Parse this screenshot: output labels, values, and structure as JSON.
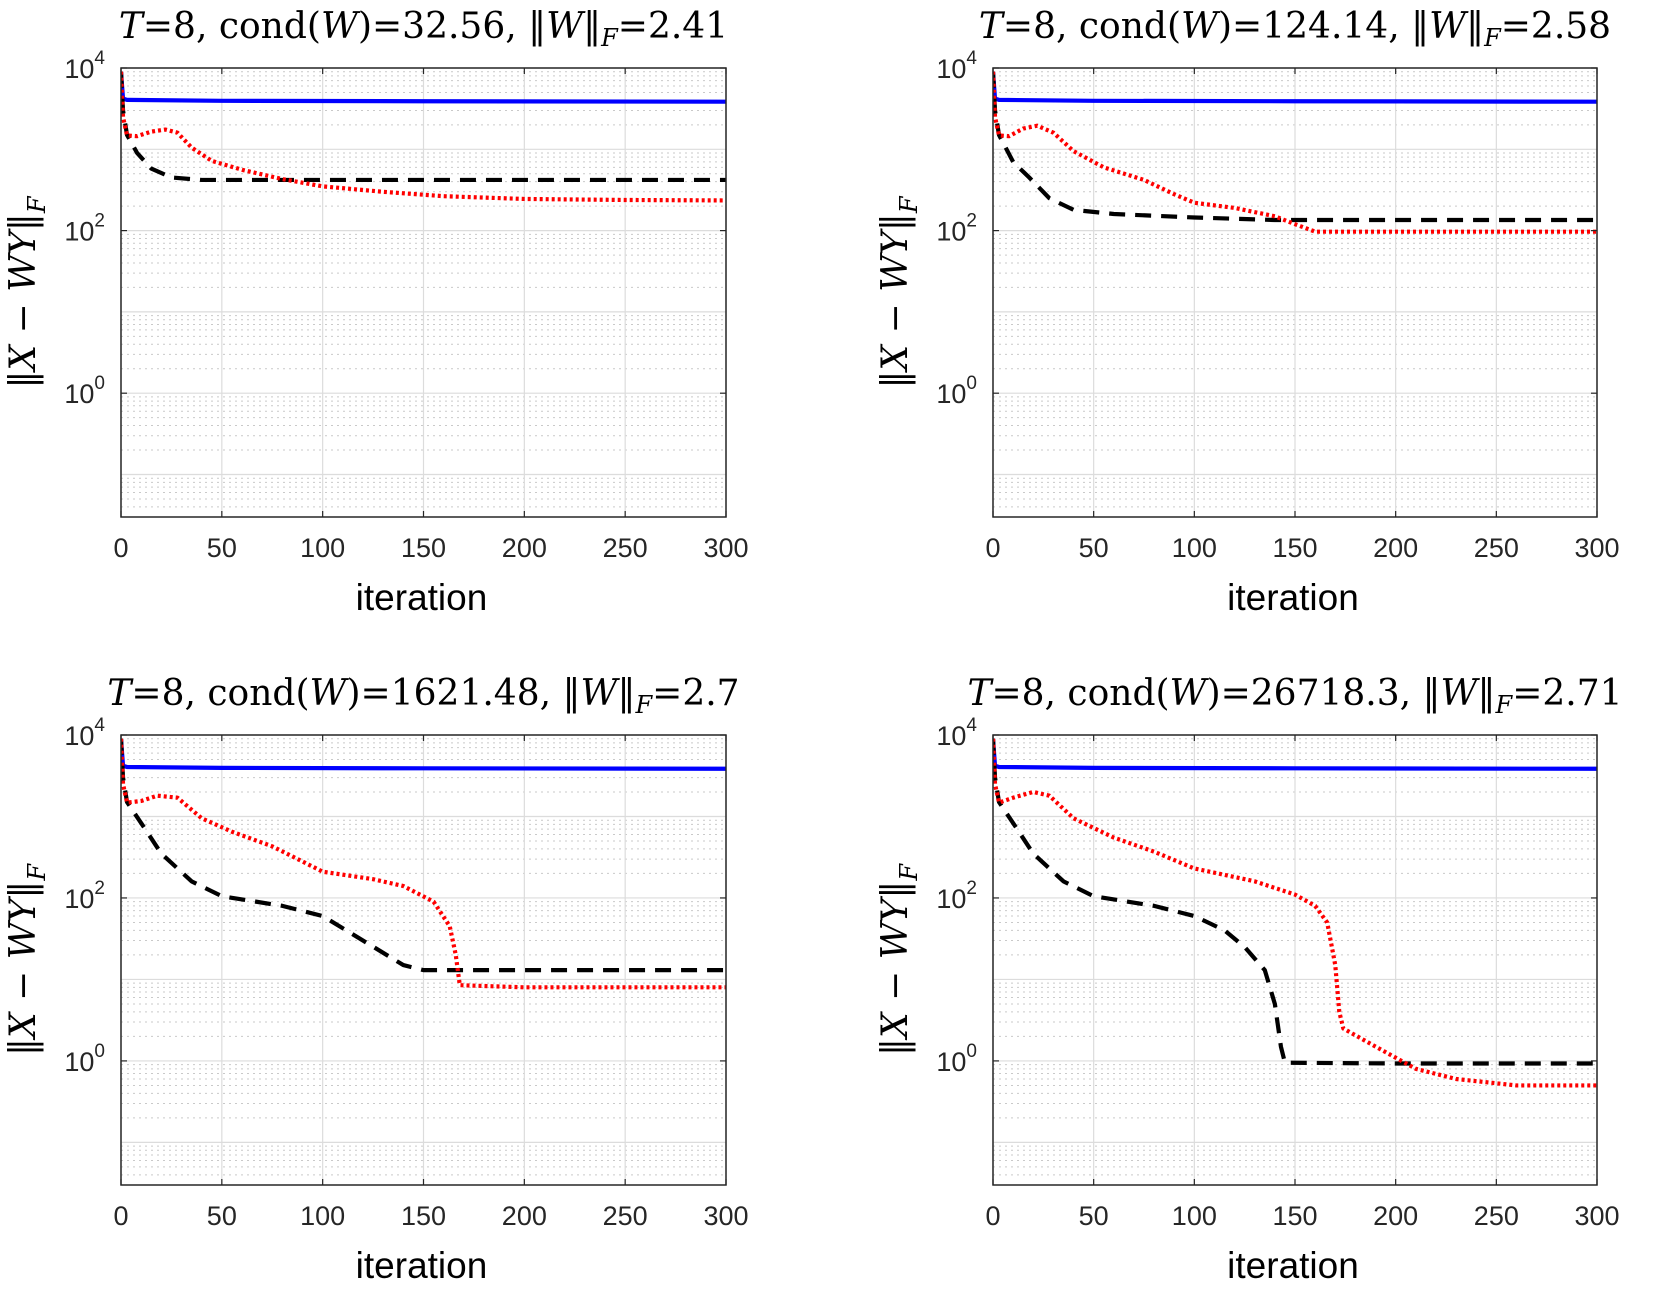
{
  "chart_data": [
    {
      "type": "line",
      "title": "T=8, cond(W)=32.56, ‖W‖F=2.41",
      "title_parts": {
        "t": "T",
        "t_val": "=8, cond(",
        "w": "W",
        "cond_val": ")=32.56, ‖",
        "w2": "W",
        "norm_close": "‖",
        "sub": "F",
        "norm_val": "=2.41"
      },
      "xlabel": "iteration",
      "ylabel": "‖X − WY‖F",
      "xlim": [
        0,
        300
      ],
      "ylim": [
        0.03,
        10000
      ],
      "xticks": [
        "0",
        "50",
        "100",
        "150",
        "200",
        "250",
        "300"
      ],
      "yticks": [
        {
          "base": "10",
          "exp": "0"
        },
        {
          "base": "10",
          "exp": "2"
        },
        {
          "base": "10",
          "exp": "4"
        }
      ],
      "series": [
        {
          "name": "blue-solid",
          "color": "#0000ff",
          "style": "solid",
          "points": [
            [
              0,
              9000
            ],
            [
              1,
              4200
            ],
            [
              3,
              4050
            ],
            [
              50,
              3950
            ],
            [
              150,
              3900
            ],
            [
              300,
              3850
            ]
          ]
        },
        {
          "name": "black-dashed",
          "color": "#000000",
          "style": "dashed",
          "points": [
            [
              0,
              9000
            ],
            [
              1,
              3000
            ],
            [
              3,
              1500
            ],
            [
              8,
              900
            ],
            [
              15,
              580
            ],
            [
              25,
              450
            ],
            [
              40,
              420
            ],
            [
              100,
              420
            ],
            [
              200,
              420
            ],
            [
              300,
              420
            ]
          ]
        },
        {
          "name": "red-dotted",
          "color": "#ff0000",
          "style": "dotted",
          "points": [
            [
              0,
              9000
            ],
            [
              1,
              2500
            ],
            [
              3,
              1480
            ],
            [
              8,
              1450
            ],
            [
              15,
              1650
            ],
            [
              22,
              1750
            ],
            [
              28,
              1600
            ],
            [
              35,
              1050
            ],
            [
              45,
              720
            ],
            [
              60,
              560
            ],
            [
              80,
              430
            ],
            [
              100,
              350
            ],
            [
              130,
              300
            ],
            [
              160,
              265
            ],
            [
              200,
              245
            ],
            [
              250,
              238
            ],
            [
              300,
              235
            ]
          ]
        }
      ]
    },
    {
      "type": "line",
      "title": "T=8, cond(W)=124.14, ‖W‖F=2.58",
      "title_parts": {
        "t": "T",
        "t_val": "=8, cond(",
        "w": "W",
        "cond_val": ")=124.14, ‖",
        "w2": "W",
        "norm_close": "‖",
        "sub": "F",
        "norm_val": "=2.58"
      },
      "xlabel": "iteration",
      "ylabel": "‖X − WY‖F",
      "xlim": [
        0,
        300
      ],
      "ylim": [
        0.03,
        10000
      ],
      "xticks": [
        "0",
        "50",
        "100",
        "150",
        "200",
        "250",
        "300"
      ],
      "yticks": [
        {
          "base": "10",
          "exp": "0"
        },
        {
          "base": "10",
          "exp": "2"
        },
        {
          "base": "10",
          "exp": "4"
        }
      ],
      "series": [
        {
          "name": "blue-solid",
          "color": "#0000ff",
          "style": "solid",
          "points": [
            [
              0,
              9000
            ],
            [
              1,
              4200
            ],
            [
              3,
              4050
            ],
            [
              50,
              3950
            ],
            [
              150,
              3900
            ],
            [
              300,
              3850
            ]
          ]
        },
        {
          "name": "black-dashed",
          "color": "#000000",
          "style": "dashed",
          "points": [
            [
              0,
              9000
            ],
            [
              1,
              3000
            ],
            [
              3,
              1500
            ],
            [
              10,
              700
            ],
            [
              18,
              450
            ],
            [
              28,
              250
            ],
            [
              40,
              180
            ],
            [
              60,
              160
            ],
            [
              100,
              145
            ],
            [
              140,
              135
            ],
            [
              300,
              135
            ]
          ]
        },
        {
          "name": "red-dotted",
          "color": "#ff0000",
          "style": "dotted",
          "points": [
            [
              0,
              9000
            ],
            [
              1,
              2500
            ],
            [
              3,
              1480
            ],
            [
              8,
              1450
            ],
            [
              15,
              1800
            ],
            [
              22,
              1950
            ],
            [
              30,
              1600
            ],
            [
              40,
              950
            ],
            [
              55,
              600
            ],
            [
              75,
              420
            ],
            [
              90,
              280
            ],
            [
              100,
              220
            ],
            [
              120,
              190
            ],
            [
              140,
              150
            ],
            [
              150,
              120
            ],
            [
              160,
              97
            ],
            [
              200,
              97
            ],
            [
              300,
              97
            ]
          ]
        }
      ]
    },
    {
      "type": "line",
      "title": "T=8, cond(W)=1621.48, ‖W‖F=2.7",
      "title_parts": {
        "t": "T",
        "t_val": "=8, cond(",
        "w": "W",
        "cond_val": ")=1621.48, ‖",
        "w2": "W",
        "norm_close": "‖",
        "sub": "F",
        "norm_val": "=2.7"
      },
      "xlabel": "iteration",
      "ylabel": "‖X − WY‖F",
      "xlim": [
        0,
        300
      ],
      "ylim": [
        0.03,
        10000
      ],
      "xticks": [
        "0",
        "50",
        "100",
        "150",
        "200",
        "250",
        "300"
      ],
      "yticks": [
        {
          "base": "10",
          "exp": "0"
        },
        {
          "base": "10",
          "exp": "2"
        },
        {
          "base": "10",
          "exp": "4"
        }
      ],
      "series": [
        {
          "name": "blue-solid",
          "color": "#0000ff",
          "style": "solid",
          "points": [
            [
              0,
              9000
            ],
            [
              1,
              4200
            ],
            [
              3,
              4050
            ],
            [
              50,
              3950
            ],
            [
              150,
              3900
            ],
            [
              300,
              3850
            ]
          ]
        },
        {
          "name": "black-dashed",
          "color": "#000000",
          "style": "dashed",
          "points": [
            [
              0,
              9000
            ],
            [
              1,
              3000
            ],
            [
              3,
              1500
            ],
            [
              12,
              700
            ],
            [
              20,
              350
            ],
            [
              35,
              160
            ],
            [
              50,
              105
            ],
            [
              80,
              80
            ],
            [
              100,
              60
            ],
            [
              120,
              30
            ],
            [
              140,
              15
            ],
            [
              150,
              13
            ],
            [
              300,
              13
            ]
          ]
        },
        {
          "name": "red-dotted",
          "color": "#ff0000",
          "style": "dotted",
          "points": [
            [
              0,
              9000
            ],
            [
              1,
              2500
            ],
            [
              3,
              1480
            ],
            [
              10,
              1550
            ],
            [
              18,
              1800
            ],
            [
              28,
              1700
            ],
            [
              40,
              950
            ],
            [
              55,
              650
            ],
            [
              75,
              430
            ],
            [
              90,
              280
            ],
            [
              100,
              210
            ],
            [
              125,
              170
            ],
            [
              140,
              140
            ],
            [
              155,
              90
            ],
            [
              163,
              45
            ],
            [
              166,
              20
            ],
            [
              168,
              8.5
            ],
            [
              200,
              8
            ],
            [
              300,
              8
            ]
          ]
        }
      ]
    },
    {
      "type": "line",
      "title": "T=8, cond(W)=26718.3, ‖W‖F=2.71",
      "title_parts": {
        "t": "T",
        "t_val": "=8, cond(",
        "w": "W",
        "cond_val": ")=26718.3, ‖",
        "w2": "W",
        "norm_close": "‖",
        "sub": "F",
        "norm_val": "=2.71"
      },
      "xlabel": "iteration",
      "ylabel": "‖X − WY‖F",
      "xlim": [
        0,
        300
      ],
      "ylim": [
        0.03,
        10000
      ],
      "xticks": [
        "0",
        "50",
        "100",
        "150",
        "200",
        "250",
        "300"
      ],
      "yticks": [
        {
          "base": "10",
          "exp": "0"
        },
        {
          "base": "10",
          "exp": "2"
        },
        {
          "base": "10",
          "exp": "4"
        }
      ],
      "series": [
        {
          "name": "blue-solid",
          "color": "#0000ff",
          "style": "solid",
          "points": [
            [
              0,
              9000
            ],
            [
              1,
              4200
            ],
            [
              3,
              4050
            ],
            [
              50,
              3950
            ],
            [
              150,
              3900
            ],
            [
              300,
              3850
            ]
          ]
        },
        {
          "name": "black-dashed",
          "color": "#000000",
          "style": "dashed",
          "points": [
            [
              0,
              9000
            ],
            [
              1,
              3000
            ],
            [
              3,
              1500
            ],
            [
              12,
              700
            ],
            [
              20,
              350
            ],
            [
              35,
              160
            ],
            [
              50,
              105
            ],
            [
              80,
              80
            ],
            [
              100,
              60
            ],
            [
              115,
              40
            ],
            [
              125,
              25
            ],
            [
              135,
              13
            ],
            [
              140,
              5
            ],
            [
              143,
              1.5
            ],
            [
              145,
              0.95
            ],
            [
              200,
              0.93
            ],
            [
              300,
              0.93
            ]
          ]
        },
        {
          "name": "red-dotted",
          "color": "#ff0000",
          "style": "dotted",
          "points": [
            [
              0,
              9000
            ],
            [
              1,
              2500
            ],
            [
              3,
              1480
            ],
            [
              10,
              1700
            ],
            [
              20,
              2000
            ],
            [
              28,
              1800
            ],
            [
              40,
              950
            ],
            [
              60,
              550
            ],
            [
              80,
              370
            ],
            [
              100,
              230
            ],
            [
              130,
              160
            ],
            [
              150,
              110
            ],
            [
              160,
              80
            ],
            [
              166,
              50
            ],
            [
              170,
              15
            ],
            [
              172,
              4
            ],
            [
              174,
              2.5
            ],
            [
              190,
              1.5
            ],
            [
              210,
              0.8
            ],
            [
              230,
              0.6
            ],
            [
              260,
              0.5
            ],
            [
              300,
              0.5
            ]
          ]
        }
      ]
    }
  ]
}
